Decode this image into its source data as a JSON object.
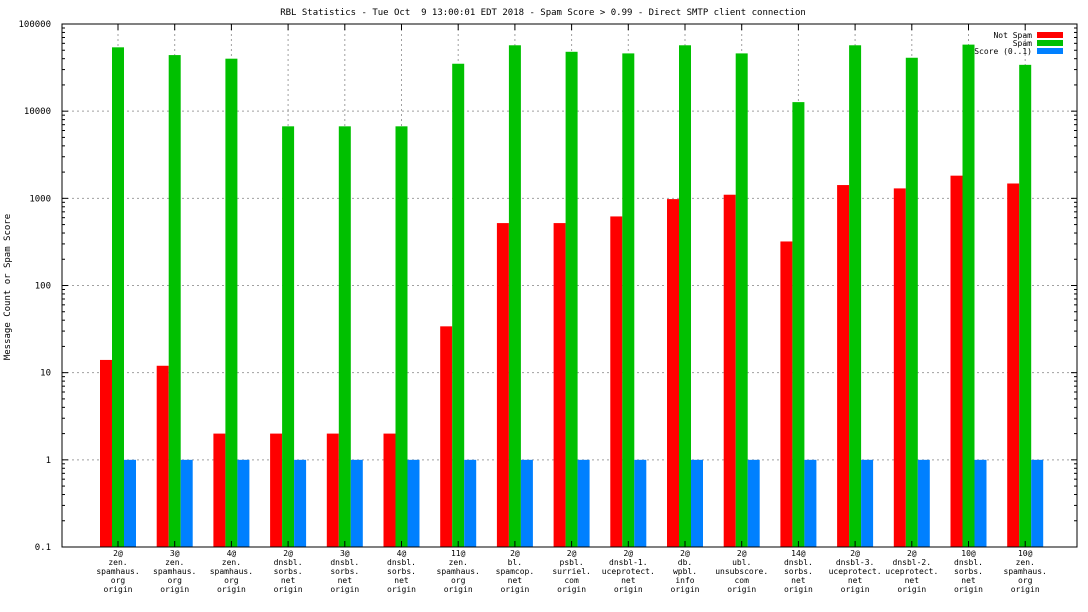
{
  "chart_data": {
    "type": "bar",
    "title": "RBL Statistics - Tue Oct  9 13:00:01 EDT 2018 - Spam Score > 0.99 - Direct SMTP client connection",
    "xlabel": "",
    "ylabel": "Message Count or Spam Score",
    "yscale": "log",
    "ylim": [
      0.1,
      100000
    ],
    "grid": true,
    "legend_position": "top-right",
    "yticks": [
      "0.1",
      "1",
      "10",
      "100",
      "1000",
      "10000",
      "100000"
    ],
    "categories": [
      [
        "2@",
        "zen.",
        "spamhaus.",
        "org",
        "origin"
      ],
      [
        "3@",
        "zen.",
        "spamhaus.",
        "org",
        "origin"
      ],
      [
        "4@",
        "zen.",
        "spamhaus.",
        "org",
        "origin"
      ],
      [
        "2@",
        "dnsbl.",
        "sorbs.",
        "net",
        "origin"
      ],
      [
        "3@",
        "dnsbl.",
        "sorbs.",
        "net",
        "origin"
      ],
      [
        "4@",
        "dnsbl.",
        "sorbs.",
        "net",
        "origin"
      ],
      [
        "11@",
        "zen.",
        "spamhaus.",
        "org",
        "origin"
      ],
      [
        "2@",
        "bl.",
        "spamcop.",
        "net",
        "origin"
      ],
      [
        "2@",
        "psbl.",
        "surriel.",
        "com",
        "origin"
      ],
      [
        "2@",
        "dnsbl-1.",
        "uceprotect.",
        "net",
        "origin"
      ],
      [
        "2@",
        "db.",
        "wpbl.",
        "info",
        "origin"
      ],
      [
        "2@",
        "ubl.",
        "unsubscore.",
        "com",
        "origin"
      ],
      [
        "14@",
        "dnsbl.",
        "sorbs.",
        "net",
        "origin"
      ],
      [
        "2@",
        "dnsbl-3.",
        "uceprotect.",
        "net",
        "origin"
      ],
      [
        "2@",
        "dnsbl-2.",
        "uceprotect.",
        "net",
        "origin"
      ],
      [
        "10@",
        "dnsbl.",
        "sorbs.",
        "net",
        "origin"
      ],
      [
        "10@",
        "zen.",
        "spamhaus.",
        "org",
        "origin"
      ]
    ],
    "series": [
      {
        "name": "Not Spam",
        "color": "#ff0000",
        "values": [
          14,
          12,
          2,
          2,
          2,
          2,
          34,
          520,
          520,
          620,
          980,
          1100,
          320,
          1420,
          1300,
          1820,
          1480
        ]
      },
      {
        "name": "Spam",
        "color": "#00c000",
        "values": [
          54000,
          44000,
          40000,
          6700,
          6700,
          6700,
          35000,
          57000,
          48000,
          46000,
          57000,
          46000,
          12700,
          57000,
          41000,
          58000,
          34000
        ]
      },
      {
        "name": "Score (0..1)",
        "color": "#0080ff",
        "values": [
          1,
          1,
          1,
          1,
          1,
          1,
          1,
          1,
          1,
          1,
          1,
          1,
          1,
          1,
          1,
          1,
          1
        ]
      }
    ]
  }
}
